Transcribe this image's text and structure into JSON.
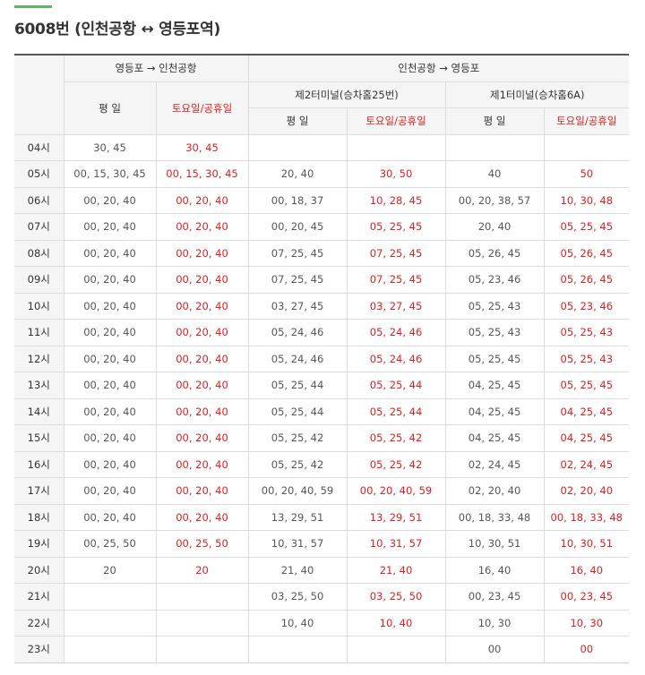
{
  "title": "6008번 (인천공항 ↔ 영등포역)",
  "accent_color": "#5fb85f",
  "weekend_color": "#e02020",
  "header": {
    "group1": "영등포 → 인천공항",
    "group2": "인천공항 → 영등포",
    "sub_t2": "제2터미널(승차홈25번)",
    "sub_t1": "제1터미널(승차홈6A)",
    "weekday": "평 일",
    "weekend": "토요일/공휴일"
  },
  "rows": [
    {
      "hour": "04시",
      "a_wd": "30, 45",
      "a_we": "30, 45",
      "b_wd": "",
      "b_we": "",
      "c_wd": "",
      "c_we": ""
    },
    {
      "hour": "05시",
      "a_wd": "00, 15, 30, 45",
      "a_we": "00, 15, 30, 45",
      "b_wd": "20, 40",
      "b_we": "30, 50",
      "c_wd": "40",
      "c_we": "50"
    },
    {
      "hour": "06시",
      "a_wd": "00, 20, 40",
      "a_we": "00, 20, 40",
      "b_wd": "00, 18, 37",
      "b_we": "10, 28, 45",
      "c_wd": "00, 20, 38, 57",
      "c_we": "10, 30, 48"
    },
    {
      "hour": "07시",
      "a_wd": "00, 20, 40",
      "a_we": "00, 20, 40",
      "b_wd": "00, 20, 45",
      "b_we": "05, 25, 45",
      "c_wd": "20, 40",
      "c_we": "05, 25, 45"
    },
    {
      "hour": "08시",
      "a_wd": "00, 20, 40",
      "a_we": "00, 20, 40",
      "b_wd": "07, 25, 45",
      "b_we": "07, 25, 45",
      "c_wd": "05, 26, 45",
      "c_we": "05, 26, 45"
    },
    {
      "hour": "09시",
      "a_wd": "00, 20, 40",
      "a_we": "00, 20, 40",
      "b_wd": "07, 25, 45",
      "b_we": "07, 25, 45",
      "c_wd": "05, 23, 46",
      "c_we": "05, 26, 45"
    },
    {
      "hour": "10시",
      "a_wd": "00, 20, 40",
      "a_we": "00, 20, 40",
      "b_wd": "03, 27, 45",
      "b_we": "03, 27, 45",
      "c_wd": "05, 25, 43",
      "c_we": "05, 23, 46"
    },
    {
      "hour": "11시",
      "a_wd": "00, 20, 40",
      "a_we": "00, 20, 40",
      "b_wd": "05, 24, 46",
      "b_we": "05, 24, 46",
      "c_wd": "05, 25, 43",
      "c_we": "05, 25, 43"
    },
    {
      "hour": "12시",
      "a_wd": "00, 20, 40",
      "a_we": "00, 20, 40",
      "b_wd": "05, 24, 46",
      "b_we": "05, 24, 46",
      "c_wd": "05, 25, 45",
      "c_we": "05, 25, 43"
    },
    {
      "hour": "13시",
      "a_wd": "00, 20, 40",
      "a_we": "00, 20, 40",
      "b_wd": "05, 25, 44",
      "b_we": "05, 25, 44",
      "c_wd": "04, 25, 45",
      "c_we": "05, 25, 45"
    },
    {
      "hour": "14시",
      "a_wd": "00, 20, 40",
      "a_we": "00, 20, 40",
      "b_wd": "05, 25, 44",
      "b_we": "05, 25, 44",
      "c_wd": "04, 25, 45",
      "c_we": "04, 25, 45"
    },
    {
      "hour": "15시",
      "a_wd": "00, 20, 40",
      "a_we": "00, 20, 40",
      "b_wd": "05, 25, 42",
      "b_we": "05, 25, 42",
      "c_wd": "04, 25, 45",
      "c_we": "04, 25, 45"
    },
    {
      "hour": "16시",
      "a_wd": "00, 20, 40",
      "a_we": "00, 20, 40",
      "b_wd": "05, 25, 42",
      "b_we": "05, 25, 42",
      "c_wd": "02, 24, 45",
      "c_we": "02, 24, 45"
    },
    {
      "hour": "17시",
      "a_wd": "00, 20, 40",
      "a_we": "00, 20, 40",
      "b_wd": "00, 20, 40, 59",
      "b_we": "00, 20, 40, 59",
      "c_wd": "02, 20, 40",
      "c_we": "02, 20, 40"
    },
    {
      "hour": "18시",
      "a_wd": "00, 20, 40",
      "a_we": "00, 20, 40",
      "b_wd": "13, 29, 51",
      "b_we": "13, 29, 51",
      "c_wd": "00, 18, 33, 48",
      "c_we": "00, 18, 33, 48"
    },
    {
      "hour": "19시",
      "a_wd": "00, 25, 50",
      "a_we": "00, 25, 50",
      "b_wd": "10, 31, 57",
      "b_we": "10, 31, 57",
      "c_wd": "10, 30, 51",
      "c_we": "10, 30, 51"
    },
    {
      "hour": "20시",
      "a_wd": "20",
      "a_we": "20",
      "b_wd": "21, 40",
      "b_we": "21, 40",
      "c_wd": "16, 40",
      "c_we": "16, 40"
    },
    {
      "hour": "21시",
      "a_wd": "",
      "a_we": "",
      "b_wd": "03, 25, 50",
      "b_we": "03, 25, 50",
      "c_wd": "00, 23, 45",
      "c_we": "00, 23, 45"
    },
    {
      "hour": "22시",
      "a_wd": "",
      "a_we": "",
      "b_wd": "10, 40",
      "b_we": "10, 40",
      "c_wd": "10, 30",
      "c_we": "10, 30"
    },
    {
      "hour": "23시",
      "a_wd": "",
      "a_we": "",
      "b_wd": "",
      "b_we": "",
      "c_wd": "00",
      "c_we": "00"
    }
  ]
}
